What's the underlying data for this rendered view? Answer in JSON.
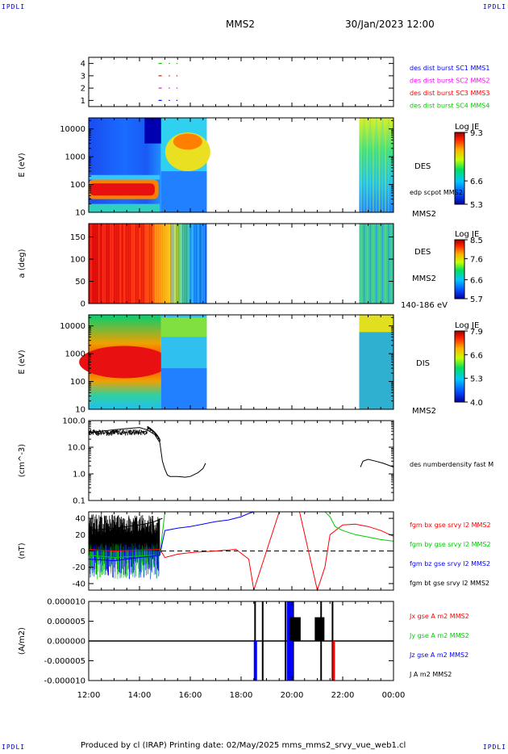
{
  "corners": {
    "tl": "IPDLI",
    "tr": "IPDLI",
    "bl": "IPDLI",
    "br": "IPDLI"
  },
  "header": {
    "spacecraft": "MMS2",
    "datetime": "30/Jan/2023 12:00"
  },
  "footer": {
    "text": "Produced by cl (IRAP)   Printing date: 02/May/2025   mms_mms2_srvy_vue_web1.cl"
  },
  "chart_data": [
    {
      "type": "scatter",
      "panel": "availability",
      "ylim": [
        0.5,
        4.5
      ],
      "yticks": [
        "1",
        "2",
        "3",
        "4"
      ],
      "series": [
        {
          "name": "des dist burst SC1 MMS1",
          "color": "#0000ff",
          "level": 1
        },
        {
          "name": "des dist burst SC2 MMS2",
          "color": "#ff00ff",
          "level": 2
        },
        {
          "name": "des dist burst SC3 MMS3",
          "color": "#ff0000",
          "level": 3
        },
        {
          "name": "des dist burst SC4 MMS4",
          "color": "#00cc00",
          "level": 4
        }
      ]
    },
    {
      "type": "heatmap",
      "panel": "des-energy",
      "ylabel": "E (eV)",
      "yscale": "log",
      "ylim": [
        10,
        25000
      ],
      "yticks": [
        "10",
        "100",
        "1000",
        "10000"
      ],
      "labels": [
        "DES",
        "edp scpot MMS2",
        "MMS2"
      ],
      "colorbar": {
        "title": "Log JE",
        "ticks": [
          "9.3",
          "6.6",
          "5.3"
        ],
        "range": [
          5.3,
          9.3
        ]
      }
    },
    {
      "type": "heatmap",
      "panel": "des-pitch",
      "ylabel": "a (deg)",
      "ylim": [
        0,
        180
      ],
      "yticks": [
        "0",
        "50",
        "100",
        "150"
      ],
      "labels": [
        "DES",
        "MMS2",
        "140-186 eV"
      ],
      "colorbar": {
        "title": "Log JE",
        "ticks": [
          "8.5",
          "7.6",
          "6.6",
          "5.7"
        ],
        "range": [
          5.7,
          8.5
        ]
      }
    },
    {
      "type": "heatmap",
      "panel": "dis-energy",
      "ylabel": "E (eV)",
      "yscale": "log",
      "ylim": [
        10,
        25000
      ],
      "yticks": [
        "10",
        "100",
        "1000",
        "10000"
      ],
      "labels": [
        "DIS",
        "MMS2"
      ],
      "colorbar": {
        "title": "Log JE",
        "ticks": [
          "7.9",
          "6.6",
          "5.3",
          "4.0"
        ],
        "range": [
          4.0,
          7.9
        ]
      }
    },
    {
      "type": "line",
      "panel": "density",
      "ylabel": "(cm^-3)",
      "yscale": "log",
      "ylim": [
        0.1,
        100
      ],
      "yticks": [
        "0.1",
        "1.0",
        "10.0",
        "100.0"
      ],
      "series": [
        {
          "name": "des numberdensity fast M",
          "color": "#000000",
          "x": [
            12.0,
            12.5,
            13.0,
            13.5,
            14.0,
            14.3,
            14.6,
            14.8,
            14.9,
            15.0,
            15.1,
            15.2,
            15.5,
            15.8,
            16.0,
            16.3,
            16.5,
            16.6,
            22.7,
            22.8,
            23.0,
            23.3,
            23.6,
            24.0
          ],
          "y": [
            35,
            40,
            45,
            50,
            55,
            45,
            30,
            15,
            3,
            1.5,
            0.9,
            0.8,
            0.8,
            0.75,
            0.8,
            1.1,
            1.6,
            2.5,
            1.8,
            3.0,
            3.5,
            3.0,
            2.5,
            1.8
          ]
        }
      ]
    },
    {
      "type": "line",
      "panel": "magnetic-field",
      "ylabel": "(nT)",
      "ylim": [
        -48,
        48
      ],
      "yticks": [
        "-40",
        "-20",
        "0",
        "20",
        "40"
      ],
      "series": [
        {
          "name": "fgm bx gse srvy l2 MMS2",
          "color": "#ff0000",
          "x": [
            12.0,
            13.0,
            14.0,
            14.8,
            15.0,
            15.5,
            16.0,
            17.0,
            17.8,
            18.3,
            18.5,
            19.5,
            20.3,
            21.0,
            21.3,
            21.5,
            22.0,
            22.5,
            23.0,
            23.5,
            24.0
          ],
          "y": [
            2,
            0,
            1,
            2,
            -8,
            -4,
            -2,
            0,
            2,
            -10,
            -48,
            48,
            48,
            -48,
            -20,
            20,
            32,
            33,
            30,
            25,
            18
          ]
        },
        {
          "name": "fgm by gse srvy l2 MMS2",
          "color": "#00cc00",
          "x": [
            12.0,
            13.0,
            14.0,
            14.8,
            15.0,
            21.3,
            21.5,
            21.7,
            22.0,
            22.5,
            23.0,
            23.5,
            24.0
          ],
          "y": [
            -5,
            -8,
            -6,
            -5,
            48,
            48,
            42,
            30,
            25,
            20,
            17,
            14,
            12
          ]
        },
        {
          "name": "fgm bz gse srvy l2 MMS2",
          "color": "#0000ff",
          "x": [
            12.0,
            13.0,
            14.0,
            14.8,
            15.0,
            15.5,
            16.0,
            16.5,
            17.0,
            17.5,
            18.0,
            18.3,
            18.5
          ],
          "y": [
            -10,
            -12,
            -8,
            -5,
            25,
            28,
            30,
            33,
            36,
            38,
            42,
            46,
            48
          ]
        },
        {
          "name": "fgm bt gse srvy l2 MMS2",
          "color": "#000000",
          "x": [
            12.0,
            13.0,
            14.0,
            14.5,
            14.9
          ],
          "y": [
            25,
            28,
            32,
            35,
            40
          ]
        }
      ]
    },
    {
      "type": "line",
      "panel": "current-density",
      "ylabel": "(A/m2)",
      "ylim": [
        -1e-05,
        1e-05
      ],
      "yticks": [
        "-0.000010",
        "-0.000005",
        "0.000000",
        "0.000005",
        "0.000010"
      ],
      "series": [
        {
          "name": "Jx gse A m2 MMS2",
          "color": "#ff0000"
        },
        {
          "name": "Jy gse A m2 MMS2",
          "color": "#00cc00"
        },
        {
          "name": "Jz gse A m2 MMS2",
          "color": "#0000ff"
        },
        {
          "name": "J A m2 MMS2",
          "color": "#000000"
        }
      ]
    }
  ],
  "time_axis": {
    "range": [
      12,
      24
    ],
    "ticks": [
      "12:00",
      "14:00",
      "16:00",
      "18:00",
      "20:00",
      "22:00",
      "00:00"
    ]
  }
}
